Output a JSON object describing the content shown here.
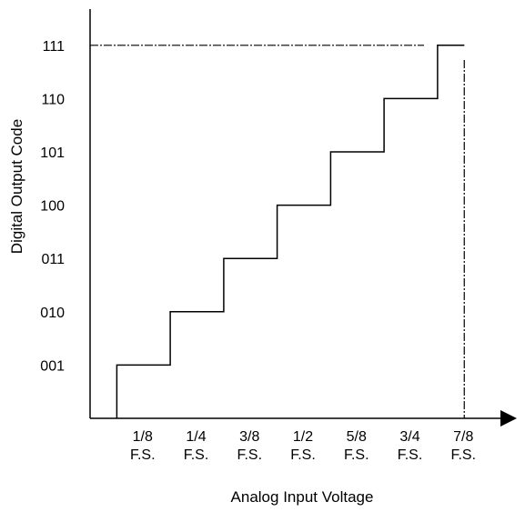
{
  "chart_data": {
    "type": "line",
    "subtype": "step",
    "xlabel": "Analog Input Voltage",
    "ylabel": "Digital Output Code",
    "x_unit": "F.S.",
    "x_tick_labels": [
      "1/8",
      "1/4",
      "3/8",
      "1/2",
      "5/8",
      "3/4",
      "7/8"
    ],
    "y_tick_labels": [
      "001",
      "010",
      "011",
      "100",
      "101",
      "110",
      "111"
    ],
    "xlim": [
      0,
      1
    ],
    "ylim": [
      0,
      7
    ],
    "x_ticks": [
      0.125,
      0.25,
      0.375,
      0.5,
      0.625,
      0.75,
      0.875
    ],
    "y_ticks": [
      1,
      2,
      3,
      4,
      5,
      6,
      7
    ],
    "series": [
      {
        "x": [
          0.0625,
          0.0625,
          0.1875,
          0.1875,
          0.3125,
          0.3125,
          0.4375,
          0.4375,
          0.5625,
          0.5625,
          0.6875,
          0.6875,
          0.8125,
          0.8125,
          0.875
        ],
        "y": [
          0,
          1,
          1,
          2,
          2,
          3,
          3,
          4,
          4,
          5,
          5,
          6,
          6,
          7,
          7
        ]
      }
    ],
    "reference_lines": [
      {
        "orientation": "horizontal",
        "value": 7,
        "style": "dash-dot"
      },
      {
        "orientation": "vertical",
        "value": 0.875,
        "style": "dash-dot"
      }
    ],
    "grid": false,
    "legend": "none",
    "colors": {
      "line": "#000000",
      "axis": "#000000",
      "background": "#ffffff"
    }
  }
}
